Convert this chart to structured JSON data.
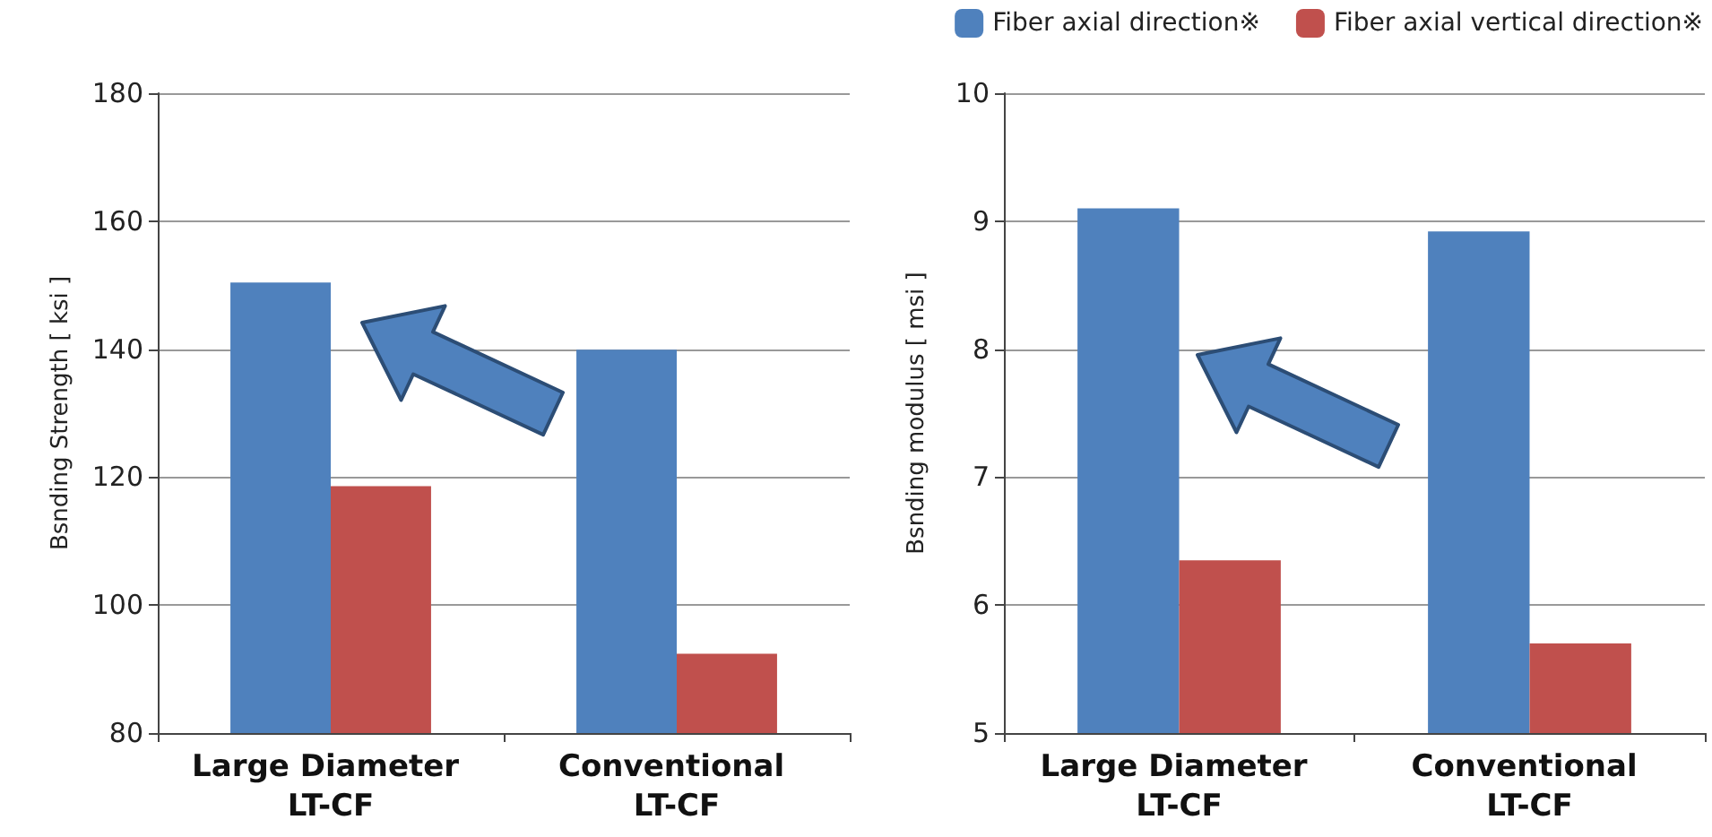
{
  "chart_data": [
    {
      "type": "bar",
      "ylabel": "Bsnding Strength [ ksi ]",
      "categories": [
        "Large Diameter LT-CF",
        "Conventional LT-CF"
      ],
      "series": [
        {
          "color": "#4f81bd",
          "values": [
            150.4,
            139.9
          ]
        },
        {
          "color": "#c0504d",
          "values": [
            118.6,
            92.4
          ]
        }
      ],
      "ylim": [
        80,
        180
      ],
      "yticks": [
        80,
        100,
        120,
        140,
        160,
        180
      ],
      "grid": "y",
      "legend": false
    },
    {
      "type": "bar",
      "ylabel": "Bsnding modulus [ msi ]",
      "categories": [
        "Large Diameter LT-CF",
        "Conventional LT-CF"
      ],
      "series": [
        {
          "name": "Fiber axial direction※",
          "color": "#4f81bd",
          "values": [
            9.1,
            8.92
          ]
        },
        {
          "name": "Fiber axial vertical direction※",
          "color": "#c0504d",
          "values": [
            6.35,
            5.7
          ]
        }
      ],
      "ylim": [
        5,
        10
      ],
      "yticks": [
        5,
        6,
        7,
        8,
        9,
        10
      ],
      "grid": "y",
      "legend": "top right"
    }
  ]
}
